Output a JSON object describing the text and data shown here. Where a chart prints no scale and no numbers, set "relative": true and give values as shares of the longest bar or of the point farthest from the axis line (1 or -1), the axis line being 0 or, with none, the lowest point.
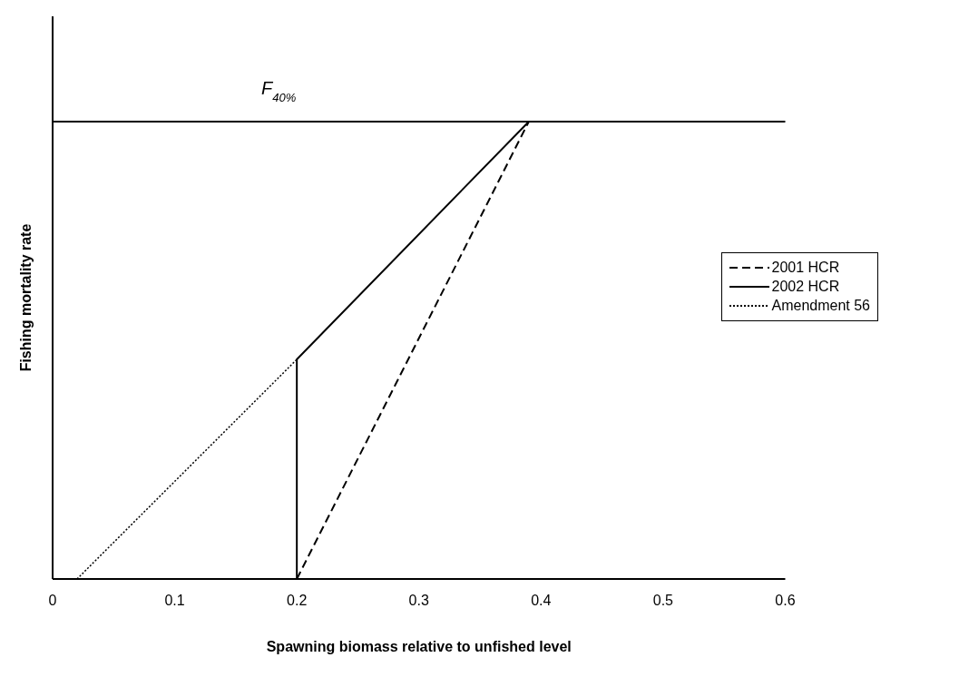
{
  "chart_data": {
    "type": "line",
    "relative": true,
    "xlabel": "Spawning biomass relative to unfished level",
    "ylabel": "Fishing mortality rate",
    "xlim": [
      0,
      0.6
    ],
    "xticks": [
      0,
      0.1,
      0.2,
      0.3,
      0.4,
      0.5,
      0.6
    ],
    "legend": "right",
    "marker": "none",
    "grid": false,
    "series": [
      {
        "name": "2001 HCR",
        "color": "#000000",
        "line_style": "dashed",
        "x": [
          0.2,
          0.39
        ],
        "values": [
          0,
          1
        ]
      },
      {
        "name": "2002 HCR",
        "color": "#000000",
        "line_style": "solid",
        "x": [
          0,
          0.2,
          0.2,
          0.39
        ],
        "values": [
          0,
          0,
          0.48,
          1
        ]
      },
      {
        "name": "Amendment 56",
        "color": "#000000",
        "line_style": "dotted",
        "x": [
          0.02,
          0.2
        ],
        "values": [
          0,
          0.48
        ]
      }
    ],
    "ref_lines": [
      {
        "axis": "y",
        "value": 1,
        "label": "F$_{40%}$",
        "color": "#000000",
        "line_style": "solid"
      }
    ]
  }
}
